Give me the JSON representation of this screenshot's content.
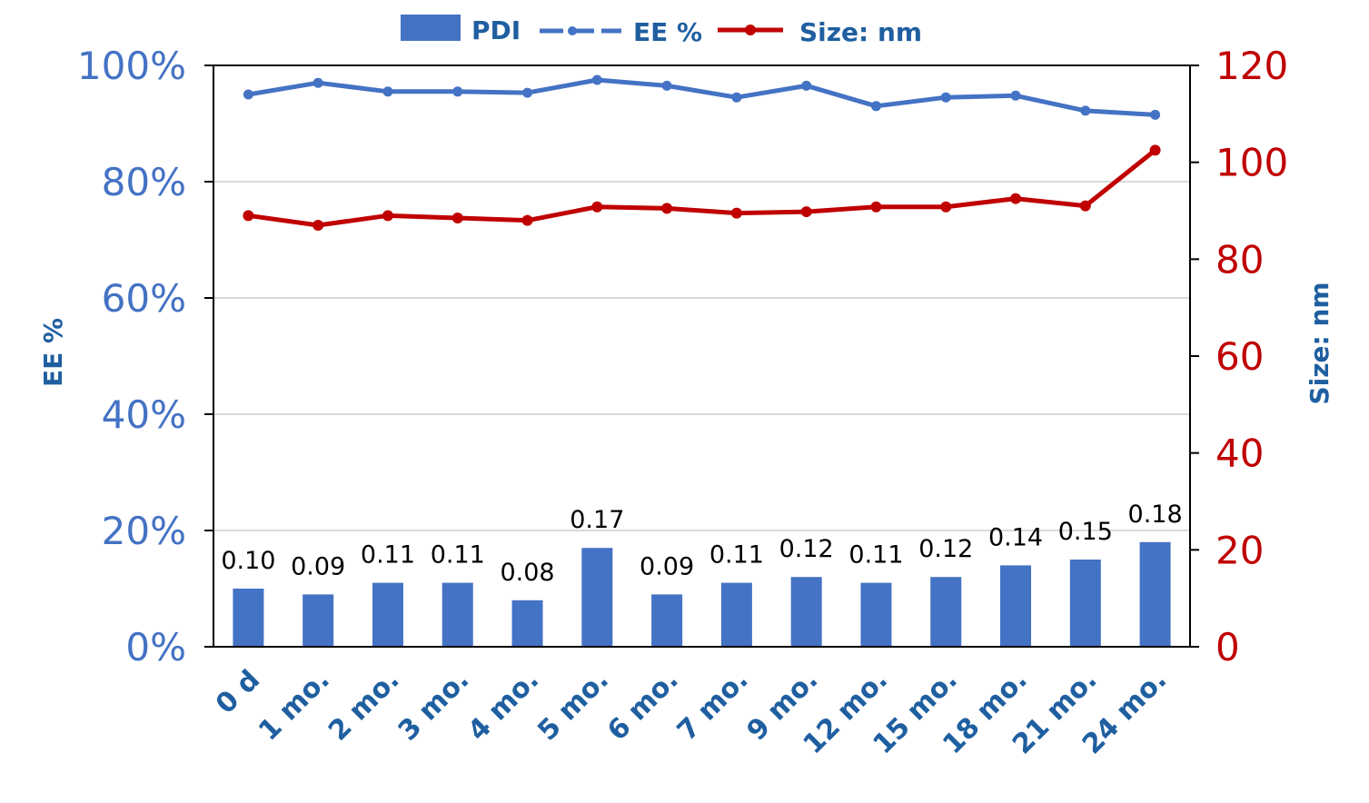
{
  "chart_data": {
    "type": "bar",
    "categories": [
      "0 d",
      "1 mo.",
      "2 mo.",
      "3 mo.",
      "4 mo.",
      "5 mo.",
      "6 mo.",
      "7 mo.",
      "9 mo.",
      "12 mo.",
      "15 mo.",
      "18 mo.",
      "21 mo.",
      "24 mo."
    ],
    "series": [
      {
        "name": "PDI",
        "type": "bar",
        "axis": "left",
        "color": "#4472c4",
        "values": [
          0.1,
          0.09,
          0.11,
          0.11,
          0.08,
          0.17,
          0.09,
          0.11,
          0.12,
          0.11,
          0.12,
          0.14,
          0.15,
          0.18
        ],
        "labels": [
          "0.10",
          "0.09",
          "0.11",
          "0.11",
          "0.08",
          "0.17",
          "0.09",
          "0.11",
          "0.12",
          "0.11",
          "0.12",
          "0.14",
          "0.15",
          "0.18"
        ]
      },
      {
        "name": "EE %",
        "type": "line",
        "axis": "left",
        "color": "#4472c4",
        "values": [
          0.95,
          0.97,
          0.955,
          0.955,
          0.953,
          0.975,
          0.965,
          0.945,
          0.965,
          0.93,
          0.945,
          0.948,
          0.922,
          0.915
        ]
      },
      {
        "name": "Size: nm",
        "type": "line",
        "axis": "right",
        "color": "#c00000",
        "values": [
          89.0,
          87.0,
          89.0,
          88.5,
          88.0,
          90.8,
          90.5,
          89.5,
          89.8,
          90.8,
          90.8,
          92.5,
          91.0,
          102.5
        ]
      }
    ],
    "left_axis": {
      "title": "EE %",
      "ylim": [
        0,
        1
      ],
      "ticks": [
        0,
        0.2,
        0.4,
        0.6,
        0.8,
        1.0
      ],
      "tick_labels": [
        "0%",
        "20%",
        "40%",
        "60%",
        "80%",
        "100%"
      ]
    },
    "right_axis": {
      "title": "Size: nm",
      "ylim": [
        0,
        120
      ],
      "ticks": [
        0,
        20,
        40,
        60,
        80,
        100,
        120
      ],
      "tick_labels": [
        "0",
        "20",
        "40",
        "60",
        "80",
        "100",
        "120"
      ]
    },
    "grid": true,
    "legend_position": "top"
  }
}
